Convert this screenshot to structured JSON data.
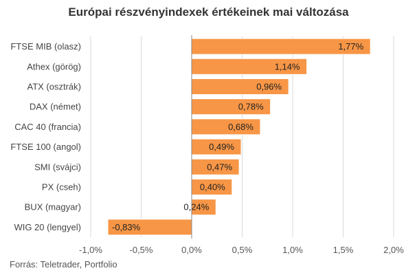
{
  "chart_data": {
    "type": "bar",
    "orientation": "horizontal",
    "title": "Európai részvényindexek értékeinek mai változása",
    "source": "Forrás: Teletrader, Portfolio",
    "categories": [
      "FTSE MIB (olasz)",
      "Athex (görög)",
      "ATX (osztrák)",
      "DAX (német)",
      "CAC 40 (francia)",
      "FTSE 100 (angol)",
      "SMI (svájci)",
      "PX (cseh)",
      "BUX (magyar)",
      "WIG 20 (lengyel)"
    ],
    "values": [
      1.77,
      1.14,
      0.96,
      0.78,
      0.68,
      0.49,
      0.47,
      0.4,
      0.24,
      -0.83
    ],
    "data_labels": [
      "1,77%",
      "1,14%",
      "0,96%",
      "0,78%",
      "0,68%",
      "0,49%",
      "0,47%",
      "0,40%",
      "0,24%",
      "-0,83%"
    ],
    "xlim": [
      -1.0,
      2.0
    ],
    "x_ticks": [
      -1.0,
      -0.5,
      0.0,
      0.5,
      1.0,
      1.5,
      2.0
    ],
    "x_tick_labels": [
      "-1,0%",
      "-0,5%",
      "0,0%",
      "0,5%",
      "1,0%",
      "1,5%",
      "2,0%"
    ],
    "grid": "vertical",
    "bar_color": "#F79646",
    "bar_edge_color": "#FFFFFF",
    "grid_color": "#D9D9D9",
    "axis_color": "#888888"
  }
}
